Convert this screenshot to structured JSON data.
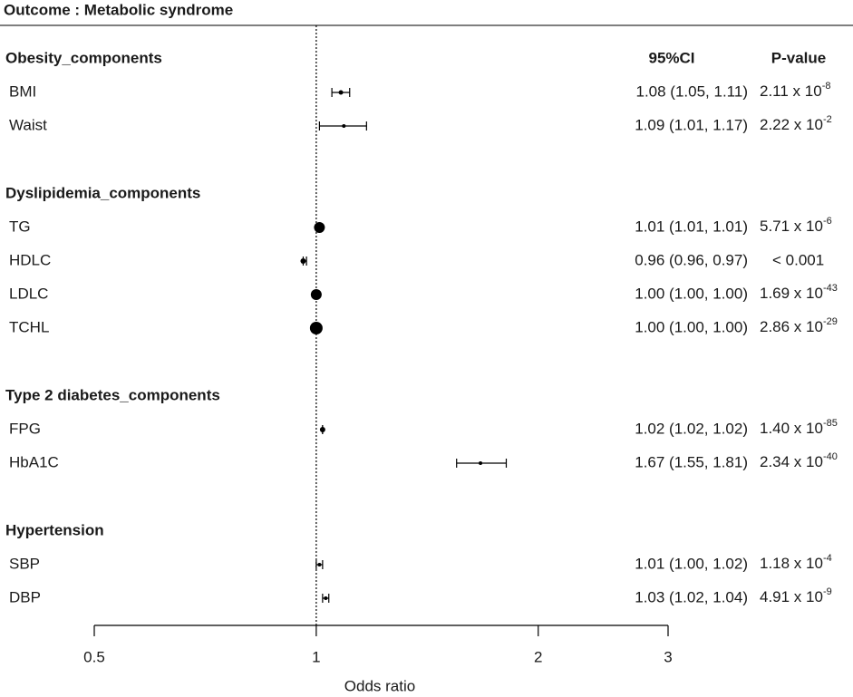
{
  "chart_data": {
    "type": "forest",
    "title": "Outcome : Metabolic syndrome",
    "xlabel": "Odds ratio",
    "log_scale": true,
    "xlim": [
      0.5,
      3
    ],
    "xticks": [
      0.5,
      1,
      2,
      3
    ],
    "reference_line": 1,
    "color": "#000000",
    "ci_header": "95%CI",
    "p_header": "P-value",
    "groups": [
      {
        "name": "Obesity_components",
        "rows": [
          {
            "label": "BMI",
            "estimate": 1.08,
            "lower": 1.05,
            "upper": 1.11,
            "ci_label": "1.08 (1.05, 1.11)",
            "marker_size": 2.5,
            "p_value": {
              "text": "2.11 x 10",
              "exponent": "-8"
            }
          },
          {
            "label": "Waist",
            "estimate": 1.09,
            "lower": 1.01,
            "upper": 1.17,
            "ci_label": "1.09 (1.01, 1.17)",
            "marker_size": 2,
            "p_value": {
              "text": "2.22 x 10",
              "exponent": "-2"
            }
          }
        ]
      },
      {
        "name": "Dyslipidemia_components",
        "rows": [
          {
            "label": "TG",
            "estimate": 1.01,
            "lower": 1.01,
            "upper": 1.01,
            "ci_label": "1.01 (1.01, 1.01)",
            "marker_size": 6,
            "p_value": {
              "text": "5.71 x 10",
              "exponent": "-6"
            }
          },
          {
            "label": "HDLC",
            "estimate": 0.96,
            "lower": 0.96,
            "upper": 0.97,
            "ci_label": "0.96 (0.96, 0.97)",
            "marker_size": 3,
            "p_value": {
              "text": "< 0.001"
            }
          },
          {
            "label": "LDLC",
            "estimate": 1.0,
            "lower": 1.0,
            "upper": 1.0,
            "ci_label": "1.00 (1.00, 1.00)",
            "marker_size": 6,
            "p_value": {
              "text": "1.69 x 10",
              "exponent": "-43"
            }
          },
          {
            "label": "TCHL",
            "estimate": 1.0,
            "lower": 1.0,
            "upper": 1.0,
            "ci_label": "1.00 (1.00, 1.00)",
            "marker_size": 7,
            "p_value": {
              "text": "2.86 x 10",
              "exponent": "-29"
            }
          }
        ]
      },
      {
        "name": "Type 2 diabetes_components",
        "rows": [
          {
            "label": "FPG",
            "estimate": 1.02,
            "lower": 1.02,
            "upper": 1.02,
            "ci_label": "1.02 (1.02, 1.02)",
            "marker_size": 3,
            "p_value": {
              "text": "1.40 x 10",
              "exponent": "-85"
            }
          },
          {
            "label": "HbA1C",
            "estimate": 1.67,
            "lower": 1.55,
            "upper": 1.81,
            "ci_label": "1.67 (1.55, 1.81)",
            "marker_size": 2,
            "p_value": {
              "text": "2.34 x 10",
              "exponent": "-40"
            }
          }
        ]
      },
      {
        "name": "Hypertension",
        "rows": [
          {
            "label": "SBP",
            "estimate": 1.01,
            "lower": 1.0,
            "upper": 1.02,
            "ci_label": "1.01 (1.00, 1.02)",
            "marker_size": 2,
            "p_value": {
              "text": "1.18 x 10",
              "exponent": "-4"
            }
          },
          {
            "label": "DBP",
            "estimate": 1.03,
            "lower": 1.02,
            "upper": 1.04,
            "ci_label": "1.03 (1.02, 1.04)",
            "marker_size": 2,
            "p_value": {
              "text": "4.91 x 10",
              "exponent": "-9"
            }
          }
        ]
      }
    ]
  }
}
